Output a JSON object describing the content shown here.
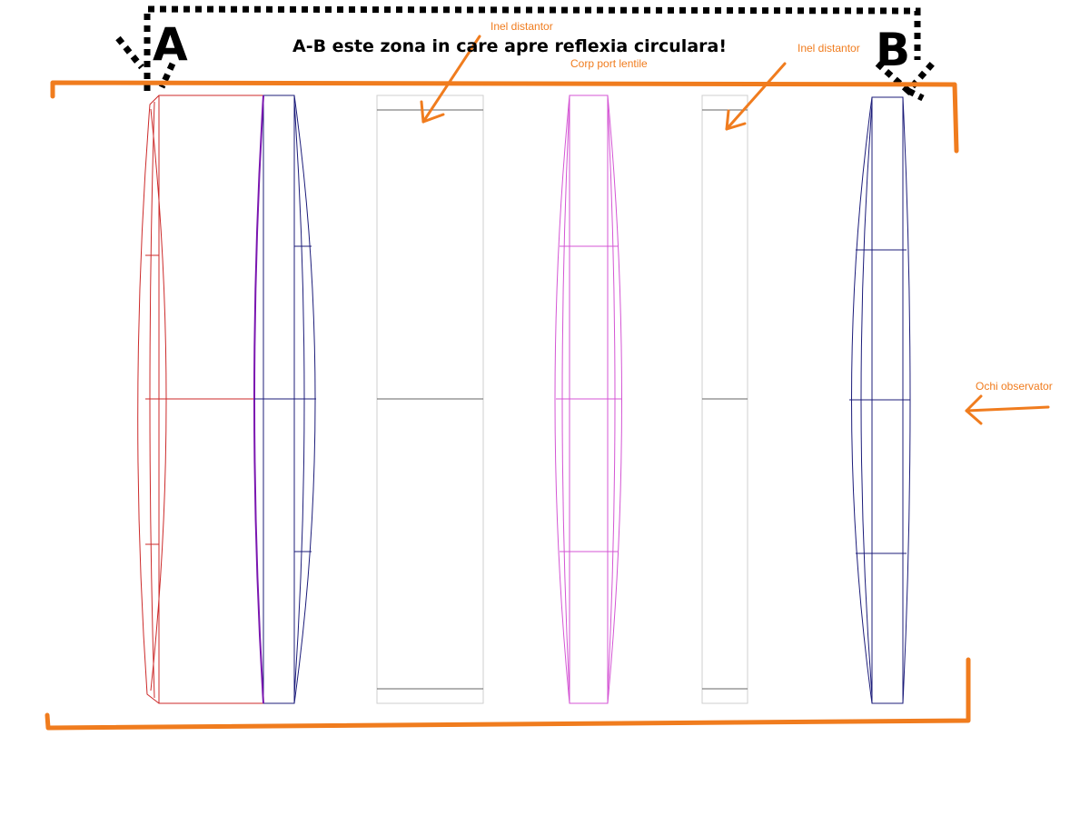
{
  "colors": {
    "annotation": "#f07c1e",
    "marker": "#000000",
    "lens_red": "#cc2a2a",
    "lens_navy": "#1c1c7a",
    "lens_purple": "#7a16b0",
    "lens_magenta": "#d455d4",
    "spacer_frame": "#cfcfcf",
    "spacer_line": "#666666"
  },
  "labels": {
    "point_a": "A",
    "point_b": "B",
    "title": "A-B este zona in care apre reflexia circulara!",
    "spacer_ring_1": "Inel distantor",
    "lens_body": "Corp port lentile",
    "spacer_ring_2": "Inel distantor",
    "observer_eye": "Ochi observator"
  },
  "icons": {
    "pointer_arrow": "arrow-icon",
    "observer_arrow": "left-arrow-icon"
  }
}
